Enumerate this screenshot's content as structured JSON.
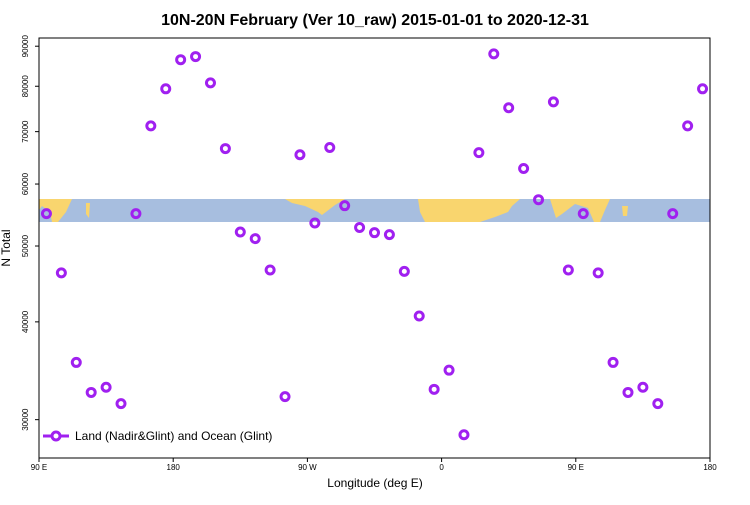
{
  "chart_data": {
    "type": "scatter",
    "title": "10N-20N February (Ver 10_raw)   2015-01-01 to 2020-12-31",
    "x_label": "Longitude (deg E)",
    "y_label": "N Total",
    "log_y": true,
    "legend_loc": "lower left",
    "xlim": [
      90,
      540
    ],
    "xticks": [
      {
        "value": 90,
        "label": "90 E"
      },
      180,
      {
        "value": 270,
        "label": "90 W"
      },
      {
        "value": 360,
        "label": "0"
      },
      {
        "value": 450,
        "label": "90 E"
      },
      {
        "value": 540,
        "label": "180"
      }
    ],
    "ylim": [
      26800,
      92200
    ],
    "yticks": [
      30000,
      40000,
      50000,
      60000,
      70000,
      80000,
      90000
    ],
    "series": [
      {
        "name": "Land (Nadir&Glint) and Ocean (Glint)",
        "color": "#a020f0",
        "x": [
          95,
          105,
          115,
          125,
          135,
          145,
          155,
          165,
          175,
          185,
          195,
          205,
          215,
          225,
          235,
          245,
          255,
          265,
          275,
          285,
          295,
          305,
          315,
          325,
          335,
          345,
          355,
          365,
          375,
          385,
          395,
          405,
          415,
          425,
          435,
          445,
          455,
          465,
          475,
          485,
          495,
          505,
          515,
          525,
          535
        ],
        "values": [
          55000,
          46200,
          35500,
          32500,
          33000,
          31450,
          55000,
          71200,
          79400,
          86500,
          87300,
          80800,
          66600,
          52100,
          51100,
          46600,
          32100,
          65400,
          53500,
          66800,
          56300,
          52800,
          52000,
          51700,
          46400,
          40700,
          32800,
          34700,
          28700,
          65800,
          88000,
          75100,
          62800,
          57300,
          76400,
          46600,
          55000,
          46200,
          35500,
          32500,
          33000,
          31450,
          55000,
          71200,
          79400
        ]
      }
    ]
  }
}
